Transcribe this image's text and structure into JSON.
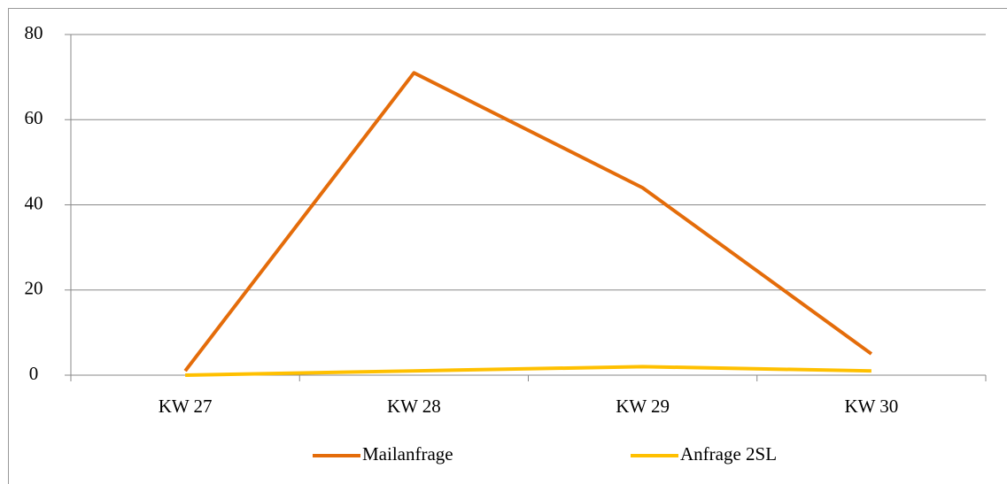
{
  "chart_data": {
    "type": "line",
    "categories": [
      "KW 27",
      "KW 28",
      "KW 29",
      "KW 30"
    ],
    "series": [
      {
        "name": "Mailanfrage",
        "color": "#e46c0a",
        "values": [
          1,
          71,
          44,
          5
        ]
      },
      {
        "name": "Anfrage 2SL",
        "color": "#ffc000",
        "values": [
          0,
          1,
          2,
          1
        ]
      }
    ],
    "ylim": [
      0,
      80
    ],
    "yticks": [
      0,
      20,
      40,
      60,
      80
    ],
    "grid": true,
    "legend": "bottom"
  }
}
